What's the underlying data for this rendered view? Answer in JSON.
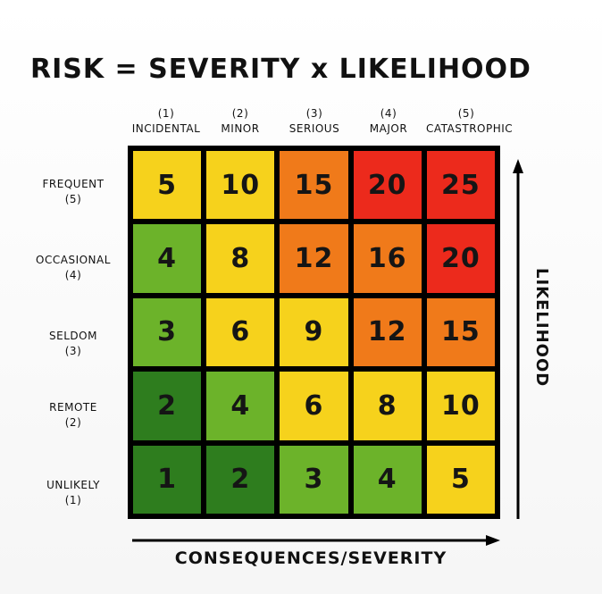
{
  "title": "RISK = SEVERITY x LIKELIHOOD",
  "columns": [
    {
      "num": "(1)",
      "label": "INCIDENTAL"
    },
    {
      "num": "(2)",
      "label": "MINOR"
    },
    {
      "num": "(3)",
      "label": "SERIOUS"
    },
    {
      "num": "(4)",
      "label": "MAJOR"
    },
    {
      "num": "(5)",
      "label": "CATASTROPHIC"
    }
  ],
  "rows": [
    {
      "label": "FREQUENT",
      "num": "(5)"
    },
    {
      "label": "OCCASIONAL",
      "num": "(4)"
    },
    {
      "label": "SELDOM",
      "num": "(3)"
    },
    {
      "label": "REMOTE",
      "num": "(2)"
    },
    {
      "label": "UNLIKELY",
      "num": "(1)"
    }
  ],
  "matrix": [
    [
      "5",
      "10",
      "15",
      "20",
      "25"
    ],
    [
      "4",
      "8",
      "12",
      "16",
      "20"
    ],
    [
      "3",
      "6",
      "9",
      "12",
      "15"
    ],
    [
      "2",
      "4",
      "6",
      "8",
      "10"
    ],
    [
      "1",
      "2",
      "3",
      "4",
      "5"
    ]
  ],
  "colors": {
    "dark_green": "#2e7d1e",
    "green": "#6cb32a",
    "yellow": "#f6d21c",
    "orange": "#f07a1a",
    "red": "#ec2a1c"
  },
  "cell_colors": [
    [
      "yellow",
      "yellow",
      "orange",
      "red",
      "red"
    ],
    [
      "green",
      "yellow",
      "orange",
      "orange",
      "red"
    ],
    [
      "green",
      "yellow",
      "yellow",
      "orange",
      "orange"
    ],
    [
      "dark_green",
      "green",
      "yellow",
      "yellow",
      "yellow"
    ],
    [
      "dark_green",
      "dark_green",
      "green",
      "green",
      "yellow"
    ]
  ],
  "axes": {
    "y_label": "LIKELIHOOD",
    "x_label": "CONSEQUENCES/SEVERITY"
  }
}
